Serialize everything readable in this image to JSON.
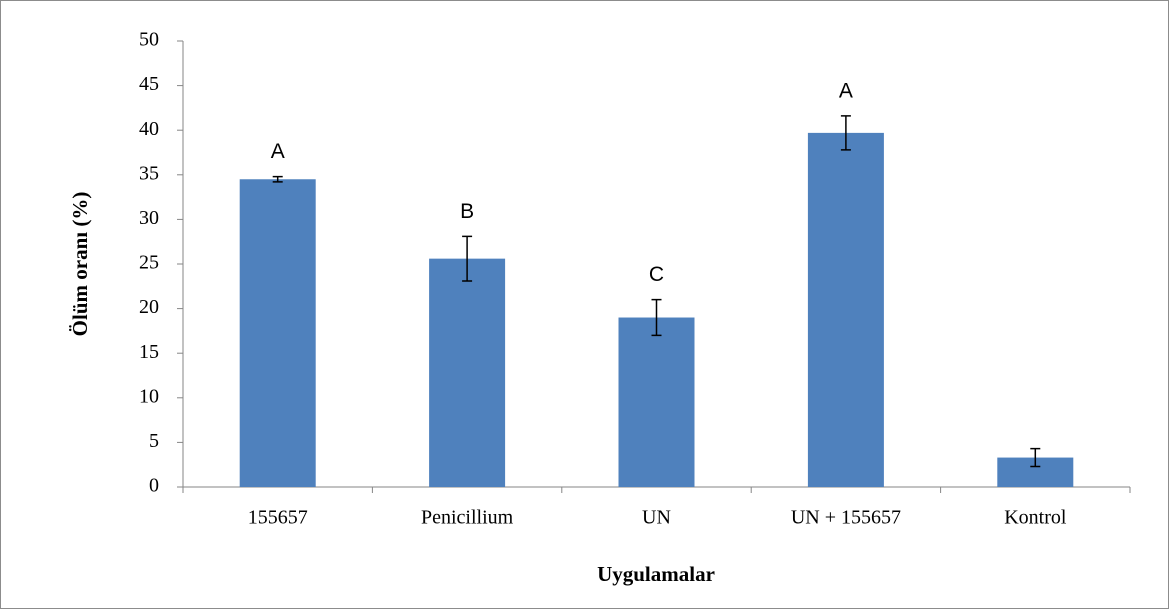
{
  "chart_data": {
    "type": "bar",
    "x_label": "Uygulamalar",
    "y_label": "Ölüm oranı (%)",
    "categories": [
      "155657",
      "Penicillium",
      "UN",
      "UN + 155657",
      "Kontrol"
    ],
    "values": [
      34.5,
      25.6,
      19.0,
      39.7,
      3.3
    ],
    "errors": [
      0.3,
      2.5,
      2.0,
      1.9,
      1.0
    ],
    "annotations": [
      "A",
      "B",
      "C",
      "A",
      null
    ],
    "color": "#4f81bd",
    "ylim": [
      0,
      50
    ],
    "yticks": [
      0,
      5,
      10,
      15,
      20,
      25,
      30,
      35,
      40,
      45,
      50
    ],
    "grid": false
  }
}
